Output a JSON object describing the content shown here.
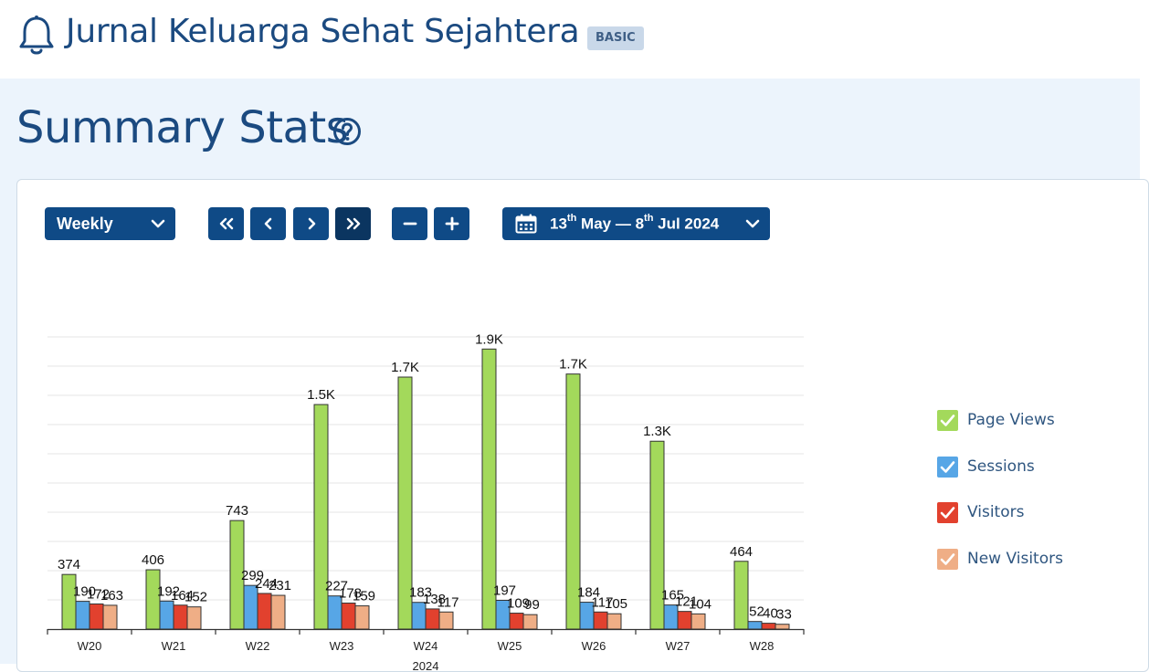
{
  "header": {
    "title": "Jurnal Keluarga Sehat Sejahtera",
    "badge": "BASIC",
    "icon": "bell-icon"
  },
  "page": {
    "title": "Summary Stats",
    "help_icon": "question-circle-icon"
  },
  "toolbar": {
    "period_value": "Weekly",
    "date_range": {
      "start_day": "13",
      "start_sup": "th",
      "start_rest": " May — ",
      "end_day": "8",
      "end_sup": "th",
      "end_rest": " Jul 2024"
    },
    "colors": {
      "button": "#0f4a86",
      "button_active": "#0b3560"
    }
  },
  "chart_data": {
    "type": "bar",
    "categories": [
      "W20",
      "W21",
      "W22",
      "W23",
      "W24",
      "W25",
      "W26",
      "W27",
      "W28"
    ],
    "x_group_label": "2024",
    "series": [
      {
        "name": "Page Views",
        "color": "#a3d95b",
        "values": [
          374,
          406,
          743,
          1537,
          1725,
          1917,
          1746,
          1286,
          464
        ],
        "labels": [
          "374",
          "406",
          "743",
          "1.5K",
          "1.7K",
          "1.9K",
          "1.7K",
          "1.3K",
          "464"
        ]
      },
      {
        "name": "Sessions",
        "color": "#57a6e6",
        "values": [
          190,
          192,
          299,
          227,
          183,
          197,
          184,
          165,
          52
        ],
        "labels": [
          "190",
          "192",
          "299",
          "227",
          "183",
          "197",
          "184",
          "165",
          "52"
        ]
      },
      {
        "name": "Visitors",
        "color": "#e2412e",
        "values": [
          172,
          164,
          244,
          178,
          138,
          109,
          117,
          121,
          40
        ],
        "labels": [
          "172",
          "164",
          "244",
          "178",
          "138",
          "109",
          "117",
          "121",
          "40"
        ]
      },
      {
        "name": "New Visitors",
        "color": "#efae86",
        "values": [
          163,
          152,
          231,
          159,
          117,
          99,
          105,
          104,
          33
        ],
        "labels": [
          "163",
          "152",
          "231",
          "159",
          "117",
          "99",
          "105",
          "104",
          "33"
        ]
      }
    ],
    "ylim": [
      0,
      2000
    ],
    "grid": true,
    "legend_position": "right"
  }
}
